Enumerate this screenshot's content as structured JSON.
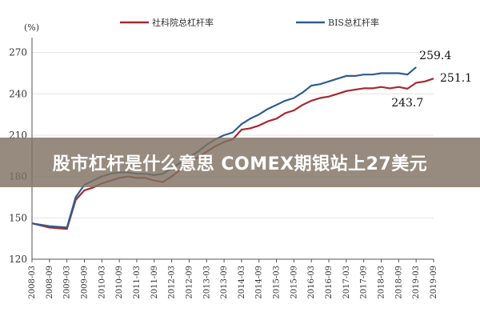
{
  "banner": {
    "text": "股市杠杆是什么意思 COMEX期银站上27美元"
  },
  "chart_data": {
    "type": "line",
    "ylabel": "(%)",
    "ylim": [
      120,
      275
    ],
    "yticks": [
      120,
      150,
      180,
      210,
      240,
      270
    ],
    "grid": true,
    "legend_position": "top",
    "x": [
      "2008-03",
      "2008-09",
      "2009-03",
      "2009-09",
      "2010-03",
      "2010-09",
      "2011-03",
      "2011-09",
      "2012-03",
      "2012-09",
      "2013-03",
      "2013-09",
      "2014-03",
      "2014-09",
      "2015-03",
      "2015-09",
      "2016-03",
      "2016-09",
      "2017-03",
      "2017-09",
      "2018-03",
      "2018-09",
      "2019-03",
      "2019-09"
    ],
    "series": [
      {
        "name": "社科院总杠杆率",
        "color": "#a8282e",
        "points": [
          [
            "2008-03",
            146
          ],
          [
            "2008-09",
            143
          ],
          [
            "2009-03",
            142
          ],
          [
            "2009-06",
            163
          ],
          [
            "2009-09",
            170
          ],
          [
            "2009-12",
            172
          ],
          [
            "2010-03",
            175
          ],
          [
            "2010-06",
            177
          ],
          [
            "2010-09",
            179
          ],
          [
            "2010-12",
            180
          ],
          [
            "2011-03",
            179
          ],
          [
            "2011-06",
            179
          ],
          [
            "2011-09",
            177
          ],
          [
            "2011-12",
            176
          ],
          [
            "2012-03",
            180
          ],
          [
            "2012-06",
            185
          ],
          [
            "2012-09",
            190
          ],
          [
            "2012-12",
            194
          ],
          [
            "2013-03",
            198
          ],
          [
            "2013-06",
            202
          ],
          [
            "2013-09",
            205
          ],
          [
            "2013-12",
            207
          ],
          [
            "2014-03",
            214
          ],
          [
            "2014-06",
            215
          ],
          [
            "2014-09",
            217
          ],
          [
            "2014-12",
            220
          ],
          [
            "2015-03",
            222
          ],
          [
            "2015-06",
            226
          ],
          [
            "2015-09",
            228
          ],
          [
            "2015-12",
            232
          ],
          [
            "2016-03",
            235
          ],
          [
            "2016-06",
            237
          ],
          [
            "2016-09",
            238
          ],
          [
            "2016-12",
            240
          ],
          [
            "2017-03",
            242
          ],
          [
            "2017-06",
            243
          ],
          [
            "2017-09",
            244
          ],
          [
            "2017-12",
            244
          ],
          [
            "2018-03",
            245
          ],
          [
            "2018-06",
            244
          ],
          [
            "2018-09",
            245
          ],
          [
            "2018-12",
            243.7
          ],
          [
            "2019-03",
            248
          ],
          [
            "2019-06",
            249
          ],
          [
            "2019-09",
            251.1
          ]
        ]
      },
      {
        "name": "BIS总杠杆率",
        "color": "#2e5e8e",
        "points": [
          [
            "2008-03",
            146
          ],
          [
            "2008-09",
            144
          ],
          [
            "2009-03",
            143
          ],
          [
            "2009-06",
            165
          ],
          [
            "2009-09",
            174
          ],
          [
            "2009-12",
            177
          ],
          [
            "2010-03",
            180
          ],
          [
            "2010-06",
            182
          ],
          [
            "2010-09",
            183
          ],
          [
            "2010-12",
            183
          ],
          [
            "2011-03",
            182
          ],
          [
            "2011-06",
            182
          ],
          [
            "2011-09",
            181
          ],
          [
            "2011-12",
            182
          ],
          [
            "2012-03",
            186
          ],
          [
            "2012-06",
            190
          ],
          [
            "2012-09",
            194
          ],
          [
            "2012-12",
            198
          ],
          [
            "2013-03",
            203
          ],
          [
            "2013-06",
            207
          ],
          [
            "2013-09",
            210
          ],
          [
            "2013-12",
            212
          ],
          [
            "2014-03",
            218
          ],
          [
            "2014-06",
            222
          ],
          [
            "2014-09",
            225
          ],
          [
            "2014-12",
            229
          ],
          [
            "2015-03",
            232
          ],
          [
            "2015-06",
            235
          ],
          [
            "2015-09",
            237
          ],
          [
            "2015-12",
            241
          ],
          [
            "2016-03",
            246
          ],
          [
            "2016-06",
            247
          ],
          [
            "2016-09",
            249
          ],
          [
            "2016-12",
            251
          ],
          [
            "2017-03",
            253
          ],
          [
            "2017-06",
            253
          ],
          [
            "2017-09",
            254
          ],
          [
            "2017-12",
            254
          ],
          [
            "2018-03",
            255
          ],
          [
            "2018-06",
            255
          ],
          [
            "2018-09",
            255
          ],
          [
            "2018-12",
            254
          ],
          [
            "2019-03",
            259.4
          ]
        ]
      }
    ],
    "annotations": [
      {
        "text": "259.4",
        "x": "2019-03",
        "y": 259.4,
        "anchor": "above-right"
      },
      {
        "text": "251.1",
        "x": "2019-09",
        "y": 251.1,
        "anchor": "right"
      },
      {
        "text": "243.7",
        "x": "2018-12",
        "y": 243.7,
        "anchor": "below"
      }
    ]
  }
}
